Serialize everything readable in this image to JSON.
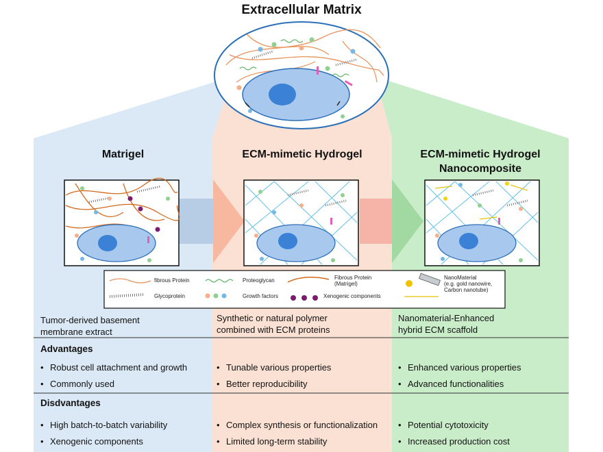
{
  "title": "Extracellular Matrix",
  "columns": [
    {
      "title_lines": [
        "Matrigel"
      ],
      "description": [
        "Tumor-derived basement",
        "membrane extract"
      ],
      "advantages": [
        "Robust cell attachment and growth",
        "Commonly used"
      ],
      "disadvantages": [
        "High batch-to-batch variability",
        "Xenogenic components"
      ]
    },
    {
      "title_lines": [
        "ECM-mimetic Hydrogel"
      ],
      "description": [
        "Synthetic or natural polymer",
        "combined with ECM proteins"
      ],
      "advantages": [
        "Tunable various properties",
        "Better reproducibility"
      ],
      "disadvantages": [
        "Complex synthesis or functionalization",
        "Limited long-term stability"
      ]
    },
    {
      "title_lines": [
        "ECM-mimetic Hydrogel",
        "Nanocomposite"
      ],
      "description": [
        "Nanomaterial-Enhanced",
        "hybrid ECM scaffold"
      ],
      "advantages": [
        "Enhanced various properties",
        "Advanced functionalities"
      ],
      "disadvantages": [
        "Potential cytotoxicity",
        "Increased production cost"
      ]
    }
  ],
  "section_labels": {
    "advantages": "Advantages",
    "disadvantages": "Disdvantages"
  },
  "legend": {
    "fibrous_protein": "fibrous Protein",
    "proteoglycan": "Proteoglycan",
    "fibrous_protein_matrigel": [
      "Fibrous Protein",
      "(Matrigel)"
    ],
    "nanomaterial": [
      "NanoMaterial",
      "(e.g. gold nanowire,",
      "Carbon nanotube)"
    ],
    "glycoprotein": "Glycoprotein",
    "growth_factors": "Growth factors",
    "xenogenic": "Xenogenic components"
  },
  "colors": {
    "blue_panel": "#dbe8f5",
    "peach_panel": "#fbe1d3",
    "green_panel": "#c9ecc9",
    "cell_fill": "#a9c8ee",
    "nucleus": "#3b82d6",
    "fiber_orange": "#e8915a",
    "mesh_blue": "#5fc0e8"
  }
}
